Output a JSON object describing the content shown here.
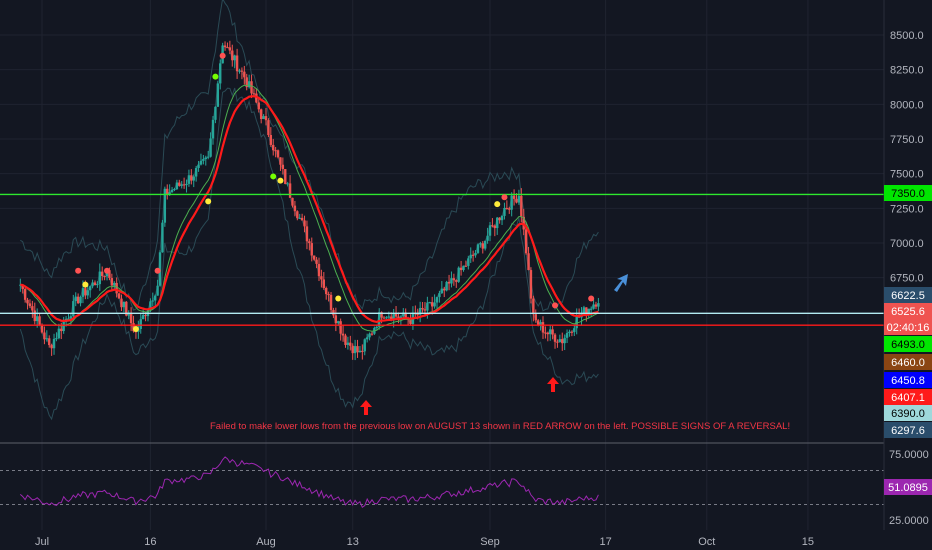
{
  "chart_data": {
    "type": "candlestick",
    "price_axis": {
      "ticks": [
        8500.0,
        8250.0,
        8000.0,
        7750.0,
        7500.0,
        7250.0,
        7000.0,
        6750.0
      ],
      "tick_labels": [
        "8500.0",
        "8250.0",
        "8000.0",
        "7750.0",
        "7500.0",
        "7250.0",
        "7000.0",
        "6750.0"
      ]
    },
    "time_axis": {
      "ticks": [
        "Jul",
        "16",
        "Aug",
        "13",
        "Sep",
        "17",
        "Oct",
        "15"
      ]
    },
    "price_series_approx": [
      {
        "x": "Jun 28",
        "y": 6700
      },
      {
        "x": "Jul 1",
        "y": 6250
      },
      {
        "x": "Jul 5",
        "y": 6600
      },
      {
        "x": "Jul 9",
        "y": 6800
      },
      {
        "x": "Jul 13",
        "y": 6350
      },
      {
        "x": "Jul 16",
        "y": 6700
      },
      {
        "x": "Jul 17",
        "y": 7350
      },
      {
        "x": "Jul 20",
        "y": 7450
      },
      {
        "x": "Jul 23",
        "y": 7600
      },
      {
        "x": "Jul 25",
        "y": 8450
      },
      {
        "x": "Jul 28",
        "y": 8200
      },
      {
        "x": "Jul 31",
        "y": 7850
      },
      {
        "x": "Aug 3",
        "y": 7400
      },
      {
        "x": "Aug 6",
        "y": 7000
      },
      {
        "x": "Aug 9",
        "y": 6550
      },
      {
        "x": "Aug 11",
        "y": 6300
      },
      {
        "x": "Aug 13",
        "y": 6200
      },
      {
        "x": "Aug 16",
        "y": 6500
      },
      {
        "x": "Aug 20",
        "y": 6450
      },
      {
        "x": "Aug 23",
        "y": 6550
      },
      {
        "x": "Aug 27",
        "y": 6800
      },
      {
        "x": "Aug 30",
        "y": 7000
      },
      {
        "x": "Sep 2",
        "y": 7250
      },
      {
        "x": "Sep 4",
        "y": 7350
      },
      {
        "x": "Sep 5",
        "y": 6950
      },
      {
        "x": "Sep 6",
        "y": 6450
      },
      {
        "x": "Sep 8",
        "y": 6350
      },
      {
        "x": "Sep 10",
        "y": 6300
      },
      {
        "x": "Sep 12",
        "y": 6450
      },
      {
        "x": "Sep 14",
        "y": 6550
      },
      {
        "x": "Sep 15",
        "y": 6600
      }
    ],
    "horizontal_lines": [
      {
        "price": 7350.0,
        "color": "#2ee82e"
      },
      {
        "price": 6407.1,
        "color": "#ff1a1a"
      },
      {
        "price": 6493.0,
        "color": "#b2ebf2"
      }
    ],
    "price_badges": [
      {
        "label": "8500.0",
        "price": 8500.0,
        "kind": "tick"
      },
      {
        "label": "7350.0",
        "price": 7350.0,
        "bg": "#00e600",
        "fg": "#000000"
      },
      {
        "label": "6622.5",
        "price": 6622.5,
        "bg": "#2a4d6b",
        "fg": "#ffffff"
      },
      {
        "label": "6525.6",
        "price": 6525.6,
        "bg": "#ef5350",
        "fg": "#ffffff"
      },
      {
        "label": "02:40:16",
        "price": 6493.0,
        "bg": "#ef5350",
        "fg": "#ffffff"
      },
      {
        "label": "6493.0",
        "price": 6493.0,
        "bg": "#00e600",
        "fg": "#000000"
      },
      {
        "label": "6460.0",
        "price": 6460.0,
        "bg": "#8b4513",
        "fg": "#ffffff"
      },
      {
        "label": "6450.8",
        "price": 6450.8,
        "bg": "#0000ff",
        "fg": "#ffffff"
      },
      {
        "label": "6407.1",
        "price": 6407.1,
        "bg": "#ff1a1a",
        "fg": "#ffffff"
      },
      {
        "label": "6390.0",
        "price": 6390.0,
        "bg": "#9ed8db",
        "fg": "#000000"
      },
      {
        "label": "6297.6",
        "price": 6297.6,
        "bg": "#2a4d6b",
        "fg": "#ffffff"
      }
    ],
    "annotation": "Failed to make lower lows from the previous low on AUGUST 13 shown in RED ARROW on the left. POSSIBLE SIGNS OF A REVERSAL!",
    "oscillator": {
      "ticks": [
        "75.0000",
        "25.0000"
      ],
      "current_label": "51.0895",
      "current_color": "#9c27b0",
      "guide_levels": [
        70,
        30
      ]
    },
    "colors": {
      "background": "#131722",
      "up": "#26a69a",
      "down": "#ef5350",
      "ema_fast": "#ff1a1a",
      "ema_slow": "#4caf50",
      "bands": "#2a4a55",
      "arrow_up": "#4a90d9",
      "signal_green": "#76ff03",
      "signal_yellow": "#ffeb3b",
      "signal_red": "#ff5252"
    }
  }
}
